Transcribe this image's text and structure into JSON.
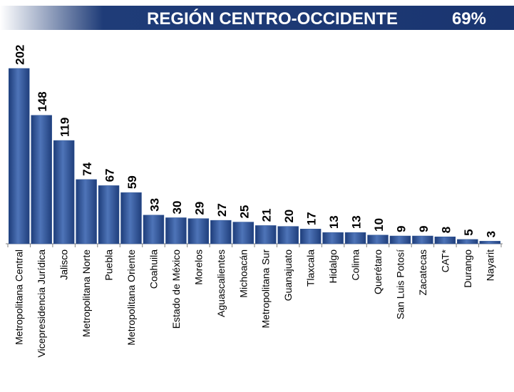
{
  "chart_data": {
    "type": "bar",
    "title": "REGIÓN CENTRO-OCCIDENTE",
    "annotation": "69%",
    "categories": [
      "Metropolitana Central",
      "Vicepresidencia Jurídica",
      "Jalisco",
      "Metropolitana Norte",
      "Puebla",
      "Metropolitana Oriente",
      "Coahuila",
      "Estado de México",
      "Morelos",
      "Aguascalientes",
      "Michoacán",
      "Metropolitana Sur",
      "Guanajuato",
      "Tlaxcala",
      "Hidalgo",
      "Colima",
      "Querétaro",
      "San Luis Potosí",
      "Zacatecas",
      "CAT*",
      "Durango",
      "Nayarit"
    ],
    "values": [
      202,
      148,
      119,
      74,
      67,
      59,
      33,
      30,
      29,
      27,
      25,
      21,
      20,
      17,
      13,
      13,
      10,
      9,
      9,
      8,
      5,
      3
    ],
    "color": "#2e5597"
  }
}
